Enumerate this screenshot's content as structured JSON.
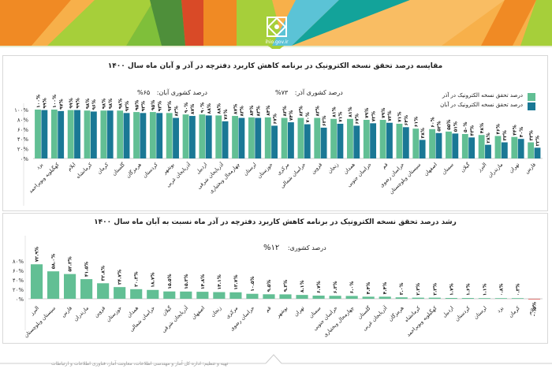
{
  "header": {
    "site": "ihio.gov.ir",
    "colors": {
      "orange": "#f08a24",
      "light_orange": "#f7b04a",
      "lime": "#a6cf3a",
      "dark_green": "#4e8f3a",
      "red": "#d94a27",
      "cyan": "#5bc3d6",
      "teal": "#13a39a"
    }
  },
  "footer": {
    "text": "تهیه و تنظیم: اداره کل آمار و مهندسی اطلاعات، معاونت آمار، فناوری اطلاعات و ارتباطات"
  },
  "colors": {
    "azar": "#62bf94",
    "aban": "#1a7895",
    "negative": "#d9534f",
    "axis": "#cccccc",
    "text": "#222222"
  },
  "chart_data": [
    {
      "type": "bar",
      "title": "مقایسه درصد تحقق نسخه الکترونیک در برنامه کاهش کاربرد دفترچه در آذر و آبان ماه سال ۱۴۰۰",
      "annotations": [
        {
          "label": "درصد کشوری آذر:",
          "value": "۷۳%"
        },
        {
          "label": "درصد کشوری آبان:",
          "value": "۶۵%"
        }
      ],
      "legend": [
        {
          "name": "درصد تحقق نسخه الکترونیک در آذر",
          "color": "#62bf94"
        },
        {
          "name": "درصد تحقق نسخه الکترونیک در آبان",
          "color": "#1a7895"
        }
      ],
      "legend_position": "top-right",
      "y_ticks": [
        "۰%",
        "۲۰%",
        "۴۰%",
        "۶۰%",
        "۸۰%",
        "۱۰۰%"
      ],
      "ylim": [
        0,
        120
      ],
      "categories": [
        "یزد",
        "کهگیلویه وبویراحمد",
        "ایلام",
        "کرمانشاه",
        "کرمان",
        "گلستان",
        "هرمزگان",
        "کردستان",
        "بوشهر",
        "آذربایجان غربی",
        "اردبیل",
        "آذربایجان شرقی",
        "چهارمحال وبختیاری",
        "لرستان",
        "خوزستان",
        "مرکزی",
        "خراسان شمالی",
        "قزوین",
        "زنجان",
        "همدان",
        "خراسان جنوبی",
        "قم",
        "خراسان رضوی",
        "سیستان وبلوچستان",
        "اصفهان",
        "سمنان",
        "گیلان",
        "البرز",
        "مازندران",
        "تهران",
        "فارس"
      ],
      "series": [
        {
          "name": "آذر",
          "values": [
            100,
            100,
            99,
            98,
            98,
            98,
            95,
            95,
            93,
            90,
            90,
            88,
            87,
            84,
            84,
            83,
            83,
            83,
            81,
            81,
            79,
            79,
            71,
            61,
            60,
            55,
            50,
            48,
            46,
            44,
            33
          ]
        },
        {
          "name": "آبان",
          "values": [
            99,
            97,
            99,
            96,
            98,
            93,
            93,
            93,
            83,
            87,
            88,
            76,
            83,
            83,
            67,
            74,
            70,
            63,
            71,
            67,
            72,
            73,
            64,
            38,
            52,
            51,
            43,
            28,
            33,
            40,
            22
          ]
        }
      ]
    },
    {
      "type": "bar",
      "title": "رشد درصد تحقق نسخه الکترونیک در برنامه کاهش کاربرد دفترچه در آذر ماه نسبت به آبان ماه سال ۱۴۰۰",
      "annotations": [
        {
          "label": "درصد کشوری:",
          "value": "۱۲%"
        }
      ],
      "y_ticks": [
        "۰%",
        "۲۰%",
        "۴۰%",
        "۶۰%",
        "۸۰%"
      ],
      "ylim": [
        0,
        80
      ],
      "categories": [
        "البرز",
        "سیستان وبلوچستان",
        "فارس",
        "مازندران",
        "قزوین",
        "خوزستان",
        "همدان",
        "خراسان شمالی",
        "گیلان",
        "آذربایجان شرقی",
        "اصفهان",
        "زنجان",
        "مرکزی",
        "خراسان رضوی",
        "قم",
        "بوشهر",
        "تهران",
        "سمنان",
        "خراسان جنوبی",
        "چهارمحال وبختیاری",
        "گلستان",
        "آذربایجان غربی",
        "هرمزگان",
        "کرمانشاه",
        "کهگیلویه وبویراحمد",
        "اردبیل",
        "کردستان",
        "لرستان",
        "یزد",
        "کرمان",
        "ایلام"
      ],
      "values": [
        72.9,
        58.0,
        52.3,
        41.5,
        32.8,
        24.7,
        20.3,
        18.7,
        15.5,
        15.3,
        14.8,
        14.1,
        13.7,
        10.5,
        9.5,
        9.3,
        8.1,
        6.7,
        6.3,
        6.0,
        4.4,
        4.4,
        3.0,
        2.3,
        2.3,
        1.7,
        1.6,
        1.1,
        0.8,
        0.3,
        -0.5
      ],
      "value_labels": [
        "۷۲.۹%",
        "۵۸.۰%",
        "۵۲.۳%",
        "۴۱.۵%",
        "۳۲.۸%",
        "۲۴.۷%",
        "۲۰.۳%",
        "۱۸.۷%",
        "۱۵.۵%",
        "۱۵.۳%",
        "۱۴.۸%",
        "۱۴.۱%",
        "۱۳.۷%",
        "۱۰.۵%",
        "۹.۵%",
        "۹.۳%",
        "۸.۱%",
        "۶.۷%",
        "۶.۳%",
        "۶.۰%",
        "۴.۴%",
        "۴.۴%",
        "۳.۰%",
        "۲.۳%",
        "۲.۳%",
        "۱.۷%",
        "۱.۶%",
        "۱.۱%",
        "۰.۸%",
        "۰.۳%",
        "-۰.۵%"
      ]
    }
  ]
}
